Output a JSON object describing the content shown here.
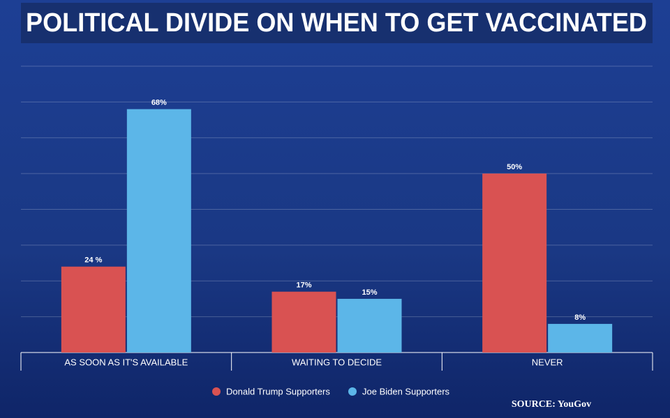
{
  "chart_data": {
    "type": "bar",
    "title": "POLITICAL DIVIDE ON WHEN TO GET VACCINATED",
    "source": "SOURCE: YouGov",
    "categories": [
      "AS SOON AS IT'S AVAILABLE",
      "WAITING TO DECIDE",
      "NEVER"
    ],
    "series": [
      {
        "name": "Donald Trump Supporters",
        "color": "#d95252",
        "values": [
          24,
          17,
          50
        ],
        "value_labels": [
          "24 %",
          "17%",
          "50%"
        ]
      },
      {
        "name": "Joe Biden Supporters",
        "color": "#5cb6e8",
        "values": [
          68,
          15,
          8
        ],
        "value_labels": [
          "68%",
          "15%",
          "8%"
        ]
      }
    ],
    "ylim": [
      0,
      80
    ],
    "yticks": [
      0,
      10,
      20,
      30,
      40,
      50,
      60,
      70,
      80
    ],
    "grid": true
  }
}
